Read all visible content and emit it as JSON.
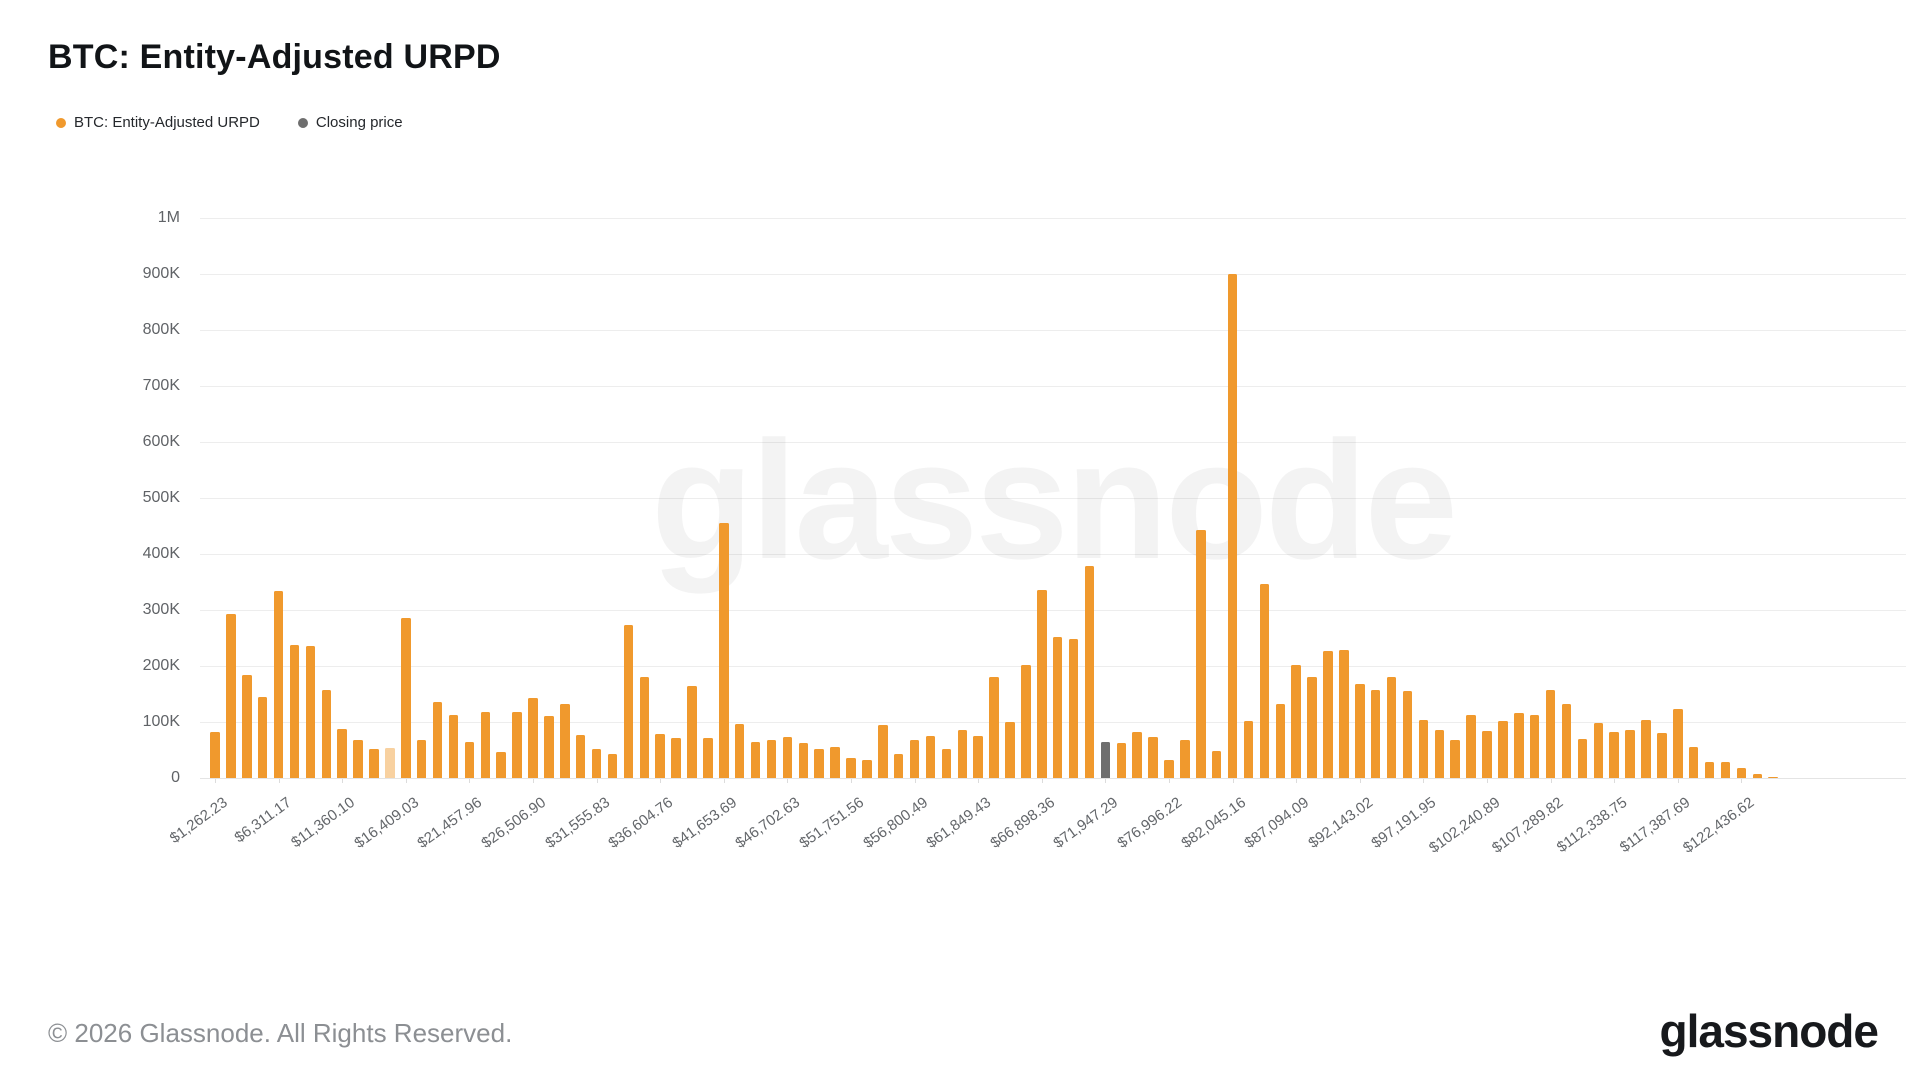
{
  "title": "BTC: Entity-Adjusted URPD",
  "legend": [
    {
      "label": "BTC: Entity-Adjusted URPD",
      "color": "#F0992D"
    },
    {
      "label": "Closing price",
      "color": "#6E6E6E"
    }
  ],
  "watermark_text": "glassnode",
  "footer": {
    "copyright": "© 2026 Glassnode. All Rights Reserved.",
    "logo_text": "glassnode"
  },
  "colors": {
    "bar_orange": "#F0992D",
    "bar_faded_orange": "rgba(240,153,45,0.45)",
    "bar_closing_gray": "#6E6E6E",
    "grid": "#ededed",
    "axis_text": "#63666a"
  },
  "chart_data": {
    "type": "bar",
    "title": "BTC: Entity-Adjusted URPD",
    "series_name": "BTC: Entity-Adjusted URPD",
    "unit": "BTC",
    "ylim": [
      0,
      1000000
    ],
    "grid": "horizontal",
    "legend_position": "top-left",
    "y_tick_labels": [
      "0",
      "100K",
      "200K",
      "300K",
      "400K",
      "500K",
      "600K",
      "700K",
      "800K",
      "900K",
      "1M"
    ],
    "x_tick_labels": [
      "$1,262.23",
      "$6,311.17",
      "$11,360.10",
      "$16,409.03",
      "$21,457.96",
      "$26,506.90",
      "$31,555.83",
      "$36,604.76",
      "$41,653.69",
      "$46,702.63",
      "$51,751.56",
      "$56,800.49",
      "$61,849.43",
      "$66,898.36",
      "$71,947.29",
      "$76,996.22",
      "$82,045.16",
      "$87,094.09",
      "$92,143.02",
      "$97,191.95",
      "$102,240.89",
      "$107,289.82",
      "$112,338.75",
      "$117,387.69",
      "$122,436.62"
    ],
    "x_tick_every_n_bars": 4,
    "values": [
      83000,
      292000,
      184000,
      144000,
      334000,
      238000,
      235000,
      158000,
      88000,
      67000,
      52000,
      53000,
      285000,
      67000,
      136000,
      112000,
      65000,
      118000,
      47000,
      117000,
      142000,
      110000,
      133000,
      77000,
      52000,
      43000,
      273000,
      180000,
      78000,
      71000,
      164000,
      71000,
      455000,
      97000,
      64000,
      68000,
      73000,
      62000,
      52000,
      55000,
      36000,
      32000,
      95000,
      42000,
      68000,
      75000,
      52000,
      85000,
      75000,
      180000,
      100000,
      202000,
      335000,
      252000,
      248000,
      379000,
      64000,
      62000,
      83000,
      73000,
      33000,
      67000,
      442000,
      48000,
      900000,
      102000,
      347000,
      132000,
      202000,
      181000,
      226000,
      228000,
      168000,
      158000,
      181000,
      156000,
      104000,
      85000,
      68000,
      113000,
      84000,
      101000,
      116000,
      113000,
      158000,
      133000,
      70000,
      98000,
      83000,
      85000,
      104000,
      80000,
      124000,
      56000,
      28000,
      28000,
      18000,
      7000,
      2000
    ],
    "closing_price_bar_index": 56,
    "closing_price_bar_label": "$71,947.29",
    "faded_bar_index": 11,
    "max_bar_label": "$82,045.16",
    "max_bar_value": 900000
  }
}
